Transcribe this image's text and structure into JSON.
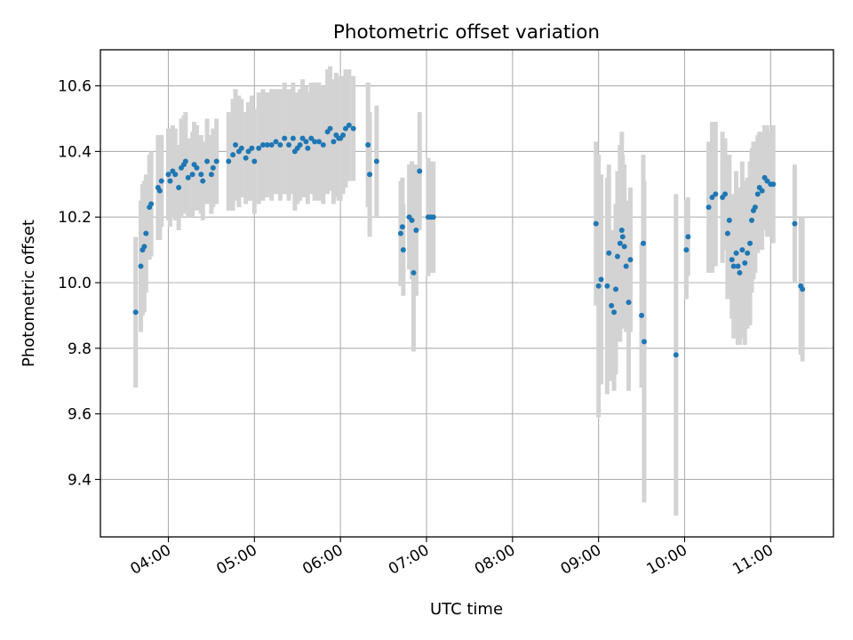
{
  "chart_data": {
    "type": "scatter",
    "title": "Photometric offset variation",
    "xlabel": "UTC time",
    "ylabel": "Photometric offset",
    "x_unit": "hours UTC",
    "xlim": [
      3.21,
      11.73
    ],
    "ylim": [
      9.225,
      10.71
    ],
    "x_ticks": [
      {
        "value": 4,
        "label": "04:00"
      },
      {
        "value": 5,
        "label": "05:00"
      },
      {
        "value": 6,
        "label": "06:00"
      },
      {
        "value": 7,
        "label": "07:00"
      },
      {
        "value": 8,
        "label": "08:00"
      },
      {
        "value": 9,
        "label": "09:00"
      },
      {
        "value": 10,
        "label": "10:00"
      },
      {
        "value": 11,
        "label": "11:00"
      }
    ],
    "y_ticks": [
      {
        "value": 9.4,
        "label": "9.4"
      },
      {
        "value": 9.6,
        "label": "9.6"
      },
      {
        "value": 9.8,
        "label": "9.8"
      },
      {
        "value": 10.0,
        "label": "10.0"
      },
      {
        "value": 10.2,
        "label": "10.2"
      },
      {
        "value": 10.4,
        "label": "10.4"
      },
      {
        "value": 10.6,
        "label": "10.6"
      }
    ],
    "grid": true,
    "colors": {
      "points": "#1f77b4",
      "errorbars": "#d3d3d3",
      "grid": "#b0b0b0"
    },
    "series": [
      {
        "points": [
          [
            3.62,
            9.91,
            0.23
          ],
          [
            3.68,
            10.05,
            0.2
          ],
          [
            3.7,
            10.1,
            0.2
          ],
          [
            3.72,
            10.11,
            0.2
          ],
          [
            3.74,
            10.15,
            0.18
          ],
          [
            3.78,
            10.23,
            0.16
          ],
          [
            3.8,
            10.24,
            0.16
          ],
          [
            3.88,
            10.29,
            0.16
          ],
          [
            3.9,
            10.28,
            0.15
          ],
          [
            3.92,
            10.31,
            0.14
          ],
          [
            4.0,
            10.33,
            0.14
          ],
          [
            4.02,
            10.31,
            0.14
          ],
          [
            4.05,
            10.34,
            0.14
          ],
          [
            4.08,
            10.33,
            0.14
          ],
          [
            4.12,
            10.29,
            0.13
          ],
          [
            4.15,
            10.35,
            0.15
          ],
          [
            4.18,
            10.36,
            0.15
          ],
          [
            4.2,
            10.37,
            0.15
          ],
          [
            4.23,
            10.32,
            0.12
          ],
          [
            4.28,
            10.33,
            0.13
          ],
          [
            4.3,
            10.36,
            0.13
          ],
          [
            4.33,
            10.35,
            0.13
          ],
          [
            4.38,
            10.33,
            0.12
          ],
          [
            4.4,
            10.31,
            0.12
          ],
          [
            4.45,
            10.37,
            0.13
          ],
          [
            4.5,
            10.33,
            0.12
          ],
          [
            4.52,
            10.35,
            0.12
          ],
          [
            4.56,
            10.37,
            0.13
          ],
          [
            4.7,
            10.37,
            0.15
          ],
          [
            4.75,
            10.39,
            0.17
          ],
          [
            4.78,
            10.42,
            0.17
          ],
          [
            4.82,
            10.4,
            0.17
          ],
          [
            4.85,
            10.41,
            0.15
          ],
          [
            4.9,
            10.38,
            0.14
          ],
          [
            4.93,
            10.4,
            0.15
          ],
          [
            4.97,
            10.41,
            0.16
          ],
          [
            5.0,
            10.37,
            0.16
          ],
          [
            5.05,
            10.41,
            0.17
          ],
          [
            5.1,
            10.42,
            0.17
          ],
          [
            5.15,
            10.42,
            0.16
          ],
          [
            5.2,
            10.42,
            0.17
          ],
          [
            5.25,
            10.43,
            0.16
          ],
          [
            5.3,
            10.42,
            0.17
          ],
          [
            5.35,
            10.44,
            0.17
          ],
          [
            5.4,
            10.42,
            0.17
          ],
          [
            5.45,
            10.44,
            0.17
          ],
          [
            5.47,
            10.4,
            0.18
          ],
          [
            5.5,
            10.41,
            0.17
          ],
          [
            5.53,
            10.42,
            0.17
          ],
          [
            5.56,
            10.44,
            0.18
          ],
          [
            5.6,
            10.43,
            0.17
          ],
          [
            5.62,
            10.41,
            0.17
          ],
          [
            5.66,
            10.44,
            0.17
          ],
          [
            5.7,
            10.43,
            0.18
          ],
          [
            5.75,
            10.43,
            0.18
          ],
          [
            5.8,
            10.42,
            0.18
          ],
          [
            5.85,
            10.46,
            0.19
          ],
          [
            5.88,
            10.47,
            0.19
          ],
          [
            5.92,
            10.43,
            0.19
          ],
          [
            5.95,
            10.45,
            0.19
          ],
          [
            5.98,
            10.44,
            0.19
          ],
          [
            6.0,
            10.44,
            0.19
          ],
          [
            6.03,
            10.45,
            0.18
          ],
          [
            6.06,
            10.47,
            0.18
          ],
          [
            6.1,
            10.48,
            0.17
          ],
          [
            6.15,
            10.47,
            0.16
          ],
          [
            6.32,
            10.42,
            0.19
          ],
          [
            6.34,
            10.33,
            0.19
          ],
          [
            6.42,
            10.37,
            0.17
          ],
          [
            6.7,
            10.15,
            0.16
          ],
          [
            6.72,
            10.17,
            0.15
          ],
          [
            6.73,
            10.1,
            0.14
          ],
          [
            6.8,
            10.2,
            0.16
          ],
          [
            6.83,
            10.19,
            0.18
          ],
          [
            6.85,
            10.03,
            0.24
          ],
          [
            6.88,
            10.16,
            0.2
          ],
          [
            6.92,
            10.34,
            0.18
          ],
          [
            7.02,
            10.2,
            0.18
          ],
          [
            7.05,
            10.2,
            0.17
          ],
          [
            7.08,
            10.2,
            0.17
          ],
          [
            8.97,
            10.18,
            0.25
          ],
          [
            9.0,
            9.99,
            0.4
          ],
          [
            9.03,
            10.01,
            0.32
          ],
          [
            9.1,
            9.99,
            0.33
          ],
          [
            9.12,
            10.09,
            0.27
          ],
          [
            9.15,
            9.93,
            0.23
          ],
          [
            9.18,
            9.91,
            0.24
          ],
          [
            9.2,
            9.98,
            0.26
          ],
          [
            9.22,
            10.08,
            0.26
          ],
          [
            9.25,
            10.12,
            0.3
          ],
          [
            9.27,
            10.16,
            0.3
          ],
          [
            9.28,
            10.14,
            0.25
          ],
          [
            9.3,
            10.11,
            0.25
          ],
          [
            9.32,
            10.05,
            0.2
          ],
          [
            9.35,
            9.94,
            0.27
          ],
          [
            9.37,
            10.07,
            0.22
          ],
          [
            9.5,
            9.9,
            0.22
          ],
          [
            9.52,
            10.12,
            0.27
          ],
          [
            9.53,
            9.82,
            0.49
          ],
          [
            9.9,
            9.78,
            0.49
          ],
          [
            10.02,
            10.1,
            0.15
          ],
          [
            10.04,
            10.14,
            0.12
          ],
          [
            10.28,
            10.23,
            0.2
          ],
          [
            10.32,
            10.26,
            0.23
          ],
          [
            10.36,
            10.27,
            0.22
          ],
          [
            10.44,
            10.26,
            0.2
          ],
          [
            10.47,
            10.27,
            0.17
          ],
          [
            10.5,
            10.15,
            0.2
          ],
          [
            10.52,
            10.19,
            0.2
          ],
          [
            10.55,
            10.07,
            0.18
          ],
          [
            10.57,
            10.05,
            0.22
          ],
          [
            10.6,
            10.09,
            0.25
          ],
          [
            10.62,
            10.05,
            0.24
          ],
          [
            10.64,
            10.03,
            0.22
          ],
          [
            10.67,
            10.1,
            0.27
          ],
          [
            10.7,
            10.06,
            0.25
          ],
          [
            10.73,
            10.09,
            0.23
          ],
          [
            10.76,
            10.12,
            0.25
          ],
          [
            10.78,
            10.19,
            0.22
          ],
          [
            10.8,
            10.22,
            0.21
          ],
          [
            10.82,
            10.23,
            0.2
          ],
          [
            10.85,
            10.27,
            0.18
          ],
          [
            10.87,
            10.29,
            0.17
          ],
          [
            10.9,
            10.28,
            0.18
          ],
          [
            10.93,
            10.32,
            0.16
          ],
          [
            10.96,
            10.31,
            0.17
          ],
          [
            11.0,
            10.3,
            0.16
          ],
          [
            11.03,
            10.3,
            0.18
          ],
          [
            11.28,
            10.18,
            0.18
          ],
          [
            11.35,
            9.99,
            0.21
          ],
          [
            11.37,
            9.98,
            0.22
          ]
        ]
      }
    ]
  }
}
